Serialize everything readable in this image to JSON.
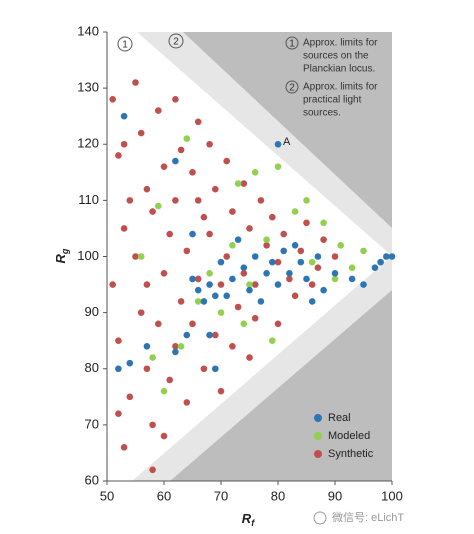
{
  "chart_data": {
    "type": "scatter",
    "x_label": {
      "symbol": "R",
      "subscript": "f"
    },
    "y_label": {
      "symbol": "R",
      "subscript": "g"
    },
    "xlim": [
      50,
      100
    ],
    "xticks": [
      50,
      60,
      70,
      80,
      90,
      100
    ],
    "ylim": [
      60,
      140
    ],
    "yticks": [
      60,
      70,
      80,
      90,
      100,
      110,
      120,
      130,
      140
    ],
    "legend": "lower right",
    "region_labels": [
      "1",
      "2"
    ],
    "notes": [
      {
        "marker": "1",
        "lines": [
          "Approx. limits for",
          "sources on the",
          "Planckian locus."
        ]
      },
      {
        "marker": "2",
        "lines": [
          "Approx. limits for",
          "practical light",
          "sources."
        ]
      }
    ],
    "point_label": {
      "text": "A",
      "x": 80,
      "y": 120
    },
    "watermark": "微信号: eLichT",
    "series": [
      {
        "name": "Real",
        "color": "#2e75b6",
        "x": [
          53,
          80,
          99,
          100,
          98,
          97,
          95,
          93,
          90,
          88,
          86,
          84,
          83,
          82,
          81,
          80,
          79,
          78,
          77,
          76,
          75,
          74,
          73,
          72,
          71,
          70,
          69,
          68,
          67,
          66,
          65,
          68,
          64,
          62,
          57,
          52,
          54,
          69,
          62,
          65,
          85,
          87
        ],
        "y": [
          125,
          120,
          100,
          100,
          99,
          98,
          95,
          96,
          97,
          94,
          92,
          99,
          102,
          97,
          101,
          95,
          99,
          97,
          92,
          100,
          94,
          98,
          103,
          96,
          93,
          99,
          93,
          95,
          92,
          94,
          96,
          86,
          86,
          83,
          84,
          80,
          81,
          80,
          117,
          104,
          96,
          100
        ]
      },
      {
        "name": "Modeled",
        "color": "#92d050",
        "x": [
          59,
          64,
          73,
          76,
          80,
          85,
          88,
          91,
          95,
          83,
          78,
          72,
          68,
          70,
          74,
          79,
          63,
          58,
          56,
          66,
          86,
          90,
          93,
          60,
          75
        ],
        "y": [
          109,
          121,
          113,
          115,
          116,
          110,
          106,
          102,
          101,
          108,
          103,
          102,
          97,
          90,
          88,
          85,
          84,
          82,
          100,
          92,
          99,
          96,
          98,
          76,
          95
        ]
      },
      {
        "name": "Synthetic",
        "color": "#c0504d",
        "x": [
          51,
          52,
          53,
          51,
          52,
          54,
          53,
          55,
          56,
          57,
          55,
          56,
          57,
          58,
          59,
          60,
          58,
          60,
          59,
          61,
          60,
          62,
          63,
          62,
          64,
          63,
          62,
          64,
          66,
          65,
          67,
          66,
          65,
          67,
          68,
          69,
          68,
          70,
          69,
          71,
          72,
          71,
          73,
          72,
          74,
          75,
          74,
          76,
          77,
          78,
          76,
          79,
          80,
          81,
          82,
          84,
          85,
          83,
          87,
          88,
          90,
          86,
          54,
          57,
          61,
          66,
          53,
          58,
          52,
          70,
          75,
          80
        ],
        "y": [
          128,
          118,
          105,
          95,
          85,
          75,
          66,
          131,
          122,
          112,
          100,
          90,
          80,
          70,
          126,
          116,
          108,
          97,
          88,
          78,
          68,
          128,
          119,
          110,
          101,
          92,
          84,
          74,
          124,
          115,
          107,
          96,
          88,
          80,
          120,
          112,
          104,
          95,
          86,
          117,
          108,
          100,
          91,
          84,
          113,
          105,
          97,
          89,
          110,
          102,
          95,
          107,
          99,
          104,
          96,
          101,
          106,
          93,
          98,
          103,
          100,
          95,
          110,
          95,
          104,
          110,
          120,
          62,
          72,
          76,
          82,
          88
        ]
      }
    ]
  }
}
